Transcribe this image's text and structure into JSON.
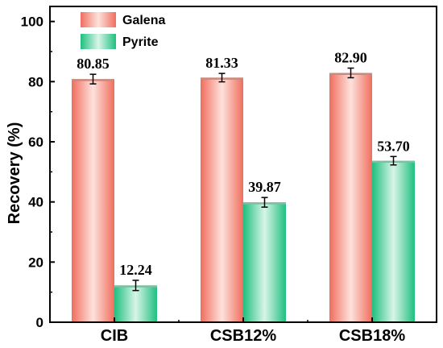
{
  "chart_data": {
    "type": "bar",
    "categories": [
      "CIB",
      "CSB12%",
      "CSB18%"
    ],
    "series": [
      {
        "name": "Galena",
        "values": [
          80.85,
          81.33,
          82.9
        ],
        "errors": [
          1.6,
          1.4,
          1.6
        ],
        "labels": [
          "80.85",
          "81.33",
          "82.90"
        ],
        "color": "#f08070"
      },
      {
        "name": "Pyrite",
        "values": [
          12.24,
          39.87,
          53.7
        ],
        "errors": [
          1.7,
          1.6,
          1.4
        ],
        "labels": [
          "12.24",
          "39.87",
          "53.70"
        ],
        "color": "#2ec48a"
      }
    ],
    "ylabel": "Recovery (%)",
    "xlabel": "",
    "ylim": [
      0,
      105
    ],
    "yticks": [
      "0",
      "20",
      "40",
      "60",
      "80",
      "100"
    ],
    "legend_position": "top-left"
  }
}
